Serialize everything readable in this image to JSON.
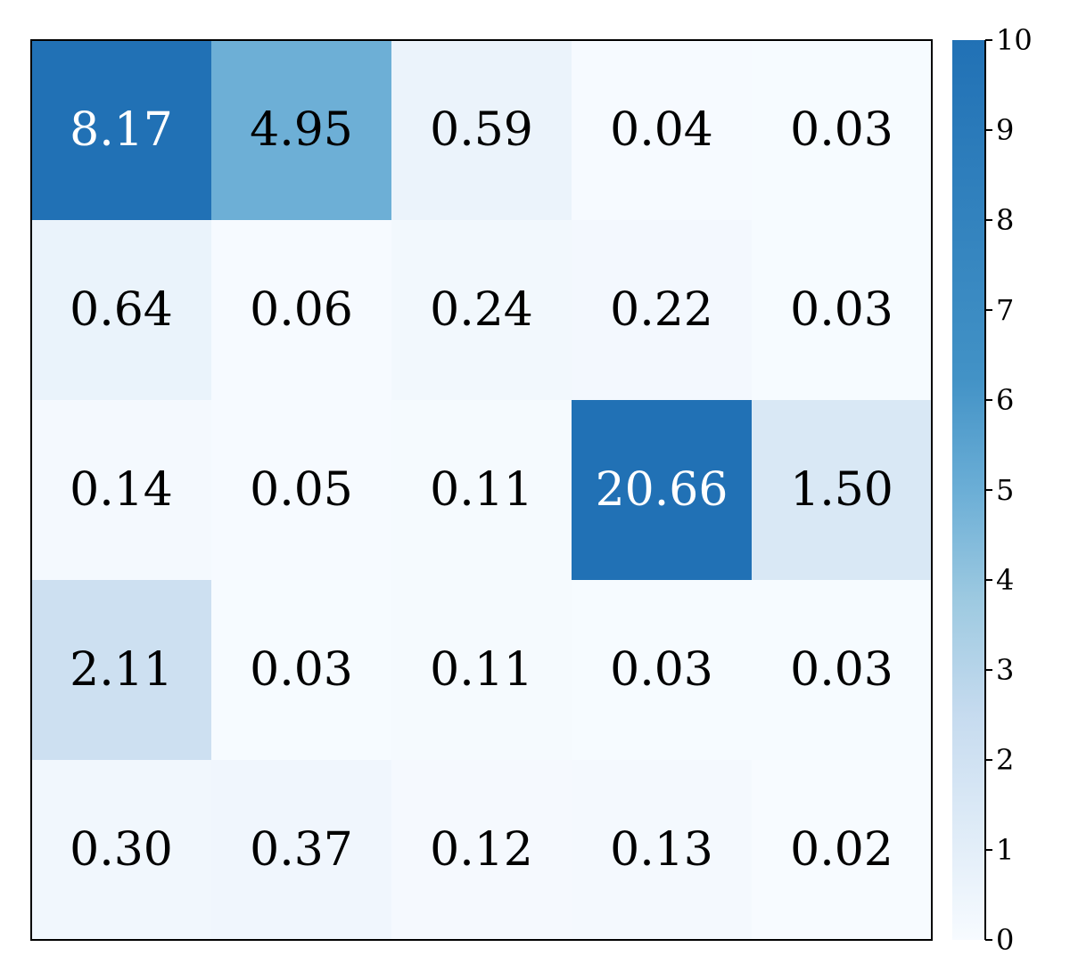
{
  "chart_data": {
    "type": "heatmap",
    "title": "",
    "xlabel": "",
    "ylabel": "",
    "rows": 5,
    "cols": 5,
    "values": [
      [
        8.17,
        4.95,
        0.59,
        0.04,
        0.03
      ],
      [
        0.64,
        0.06,
        0.24,
        0.22,
        0.03
      ],
      [
        0.14,
        0.05,
        0.11,
        20.66,
        1.5
      ],
      [
        2.11,
        0.03,
        0.11,
        0.03,
        0.03
      ],
      [
        0.3,
        0.37,
        0.12,
        0.13,
        0.02
      ]
    ],
    "cell_labels": [
      [
        "8.17",
        "4.95",
        "0.59",
        "0.04",
        "0.03"
      ],
      [
        "0.64",
        "0.06",
        "0.24",
        "0.22",
        "0.03"
      ],
      [
        "0.14",
        "0.05",
        "0.11",
        "20.66",
        "1.50"
      ],
      [
        "2.11",
        "0.03",
        "0.11",
        "0.03",
        "0.03"
      ],
      [
        "0.30",
        "0.37",
        "0.12",
        "0.13",
        "0.02"
      ]
    ],
    "colorbar": {
      "range": [
        0,
        10
      ],
      "ticks": [
        0,
        1,
        2,
        3,
        4,
        5,
        6,
        7,
        8,
        9,
        10
      ],
      "tick_labels": [
        "0",
        "1",
        "2",
        "3",
        "4",
        "5",
        "6",
        "7",
        "8",
        "9",
        "10"
      ],
      "colormap": "Blues",
      "low_color": "#f7fbff",
      "high_color": "#2171b5"
    },
    "grid": false
  }
}
